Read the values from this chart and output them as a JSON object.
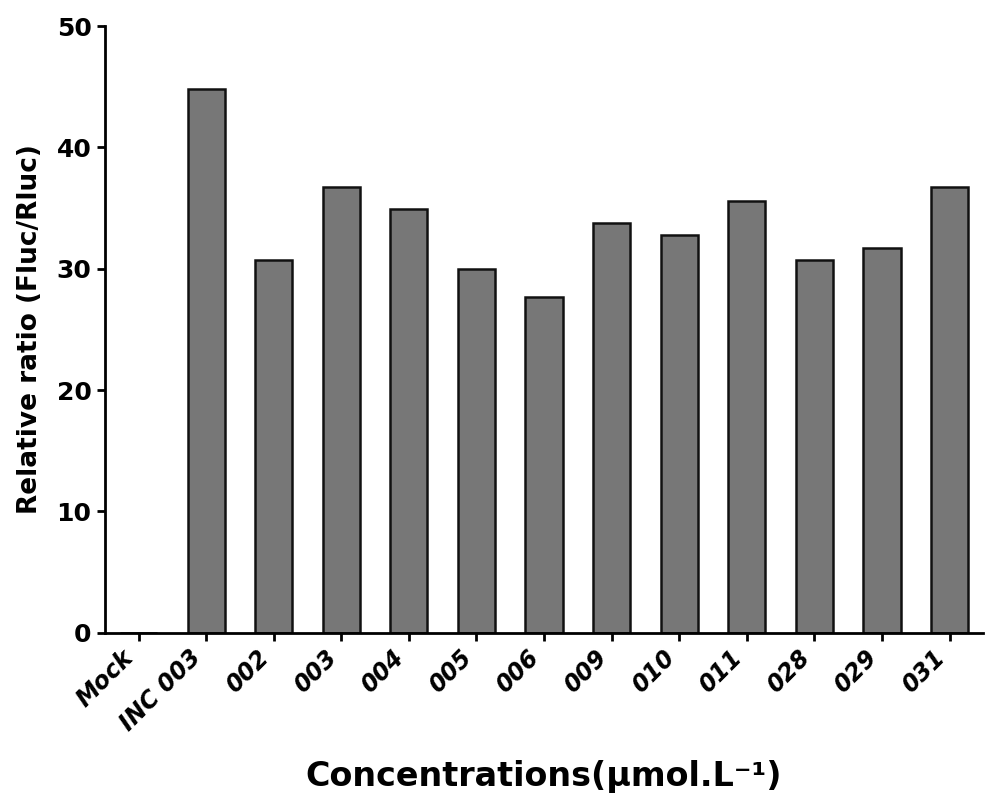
{
  "categories": [
    "Mock",
    "INC 003",
    "002",
    "003",
    "004",
    "005",
    "006",
    "009",
    "010",
    "011",
    "028",
    "029",
    "031"
  ],
  "values": [
    0,
    44.8,
    30.7,
    36.7,
    34.9,
    30.0,
    27.7,
    33.8,
    32.8,
    35.6,
    30.7,
    31.7,
    36.7
  ],
  "bar_color": "#777777",
  "bar_edgecolor": "#111111",
  "ylabel": "Relative ratio (Fluc/Rluc)",
  "xlabel": "Concentrations(μmol.L⁻¹)",
  "ylim": [
    0,
    50
  ],
  "yticks": [
    0,
    10,
    20,
    30,
    40,
    50
  ],
  "title": "",
  "bar_width": 0.55,
  "background_color": "#ffffff",
  "ylabel_fontsize": 19,
  "xlabel_fontsize": 24,
  "tick_fontsize": 17,
  "ytick_fontsize": 18,
  "xtick_rotation": 45
}
